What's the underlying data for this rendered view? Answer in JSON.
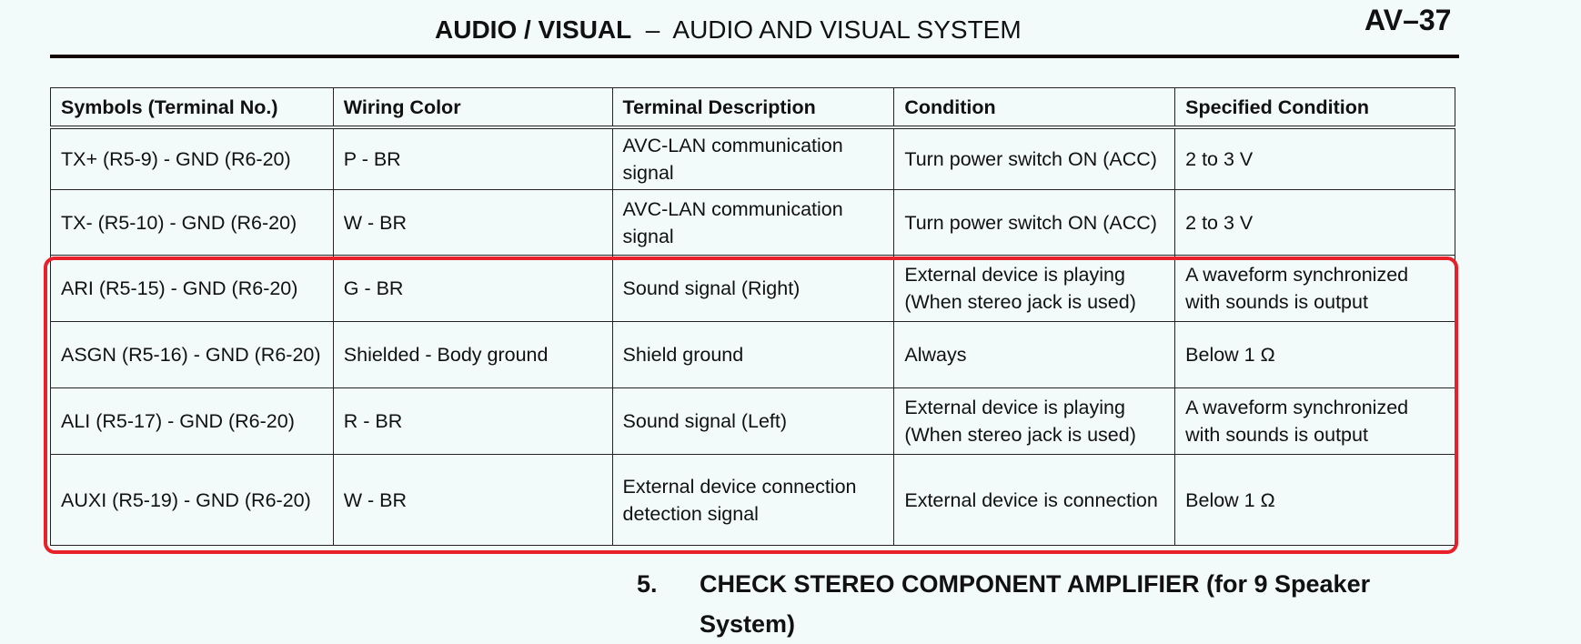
{
  "header": {
    "section_bold": "AUDIO / VISUAL",
    "separator": "–",
    "section_rest": "AUDIO AND VISUAL SYSTEM",
    "page_number": "AV–37"
  },
  "table": {
    "columns": [
      "Symbols (Terminal No.)",
      "Wiring Color",
      "Terminal Description",
      "Condition",
      "Specified Condition"
    ],
    "rows": [
      [
        "TX+ (R5-9) - GND (R6-20)",
        "P - BR",
        "AVC-LAN communication signal",
        "Turn power switch ON (ACC)",
        "2 to 3 V"
      ],
      [
        "TX- (R5-10) - GND (R6-20)",
        "W - BR",
        "AVC-LAN communication signal",
        "Turn power switch ON (ACC)",
        "2 to 3 V"
      ],
      [
        "ARI (R5-15) - GND (R6-20)",
        "G - BR",
        "Sound signal (Right)",
        "External device is playing (When stereo jack is used)",
        "A waveform synchronized with sounds is output"
      ],
      [
        "ASGN (R5-16) - GND (R6-20)",
        "Shielded - Body ground",
        "Shield ground",
        "Always",
        "Below 1 Ω"
      ],
      [
        "ALI (R5-17) - GND (R6-20)",
        "R - BR",
        "Sound signal (Left)",
        "External device is playing (When stereo jack is used)",
        "A waveform synchronized with sounds is output"
      ],
      [
        "AUXI (R5-19) - GND (R6-20)",
        "W - BR",
        "External device connection detection signal",
        "External device is connection",
        "Below 1 Ω"
      ]
    ],
    "highlight_color": "#e8202a"
  },
  "step": {
    "number": "5.",
    "title": "CHECK STEREO COMPONENT AMPLIFIER (for 9 Speaker System)"
  }
}
